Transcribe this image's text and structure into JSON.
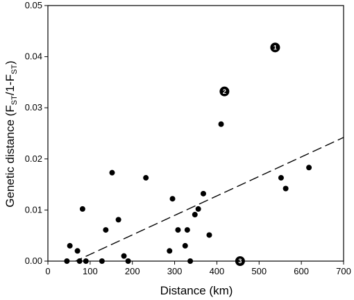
{
  "chart_data": {
    "type": "scatter",
    "xlabel": "Distance (km)",
    "ylabel": {
      "prefix": "Genetic distance (F",
      "sub1": "ST",
      "middle": "/1-F",
      "sub2": "ST",
      "suffix": ")"
    },
    "xlim": [
      0,
      700
    ],
    "ylim": [
      0,
      0.05
    ],
    "x_ticks": [
      "0",
      "100",
      "200",
      "300",
      "400",
      "500",
      "600",
      "700"
    ],
    "y_ticks": [
      "0.00",
      "0.01",
      "0.02",
      "0.03",
      "0.04",
      "0.05"
    ],
    "grid": false,
    "points": [
      {
        "x": 45,
        "y": 0.0
      },
      {
        "x": 52,
        "y": 0.003
      },
      {
        "x": 70,
        "y": 0.002
      },
      {
        "x": 75,
        "y": 0.0
      },
      {
        "x": 82,
        "y": 0.0102
      },
      {
        "x": 90,
        "y": 0.0
      },
      {
        "x": 128,
        "y": 0.0
      },
      {
        "x": 137,
        "y": 0.0061
      },
      {
        "x": 152,
        "y": 0.0173
      },
      {
        "x": 167,
        "y": 0.0081
      },
      {
        "x": 180,
        "y": 0.001
      },
      {
        "x": 190,
        "y": 0.0
      },
      {
        "x": 232,
        "y": 0.0163
      },
      {
        "x": 288,
        "y": 0.002
      },
      {
        "x": 295,
        "y": 0.0122
      },
      {
        "x": 308,
        "y": 0.0061
      },
      {
        "x": 325,
        "y": 0.003
      },
      {
        "x": 330,
        "y": 0.0061
      },
      {
        "x": 337,
        "y": 0.0
      },
      {
        "x": 348,
        "y": 0.0091
      },
      {
        "x": 356,
        "y": 0.0102
      },
      {
        "x": 368,
        "y": 0.0132
      },
      {
        "x": 382,
        "y": 0.0051
      },
      {
        "x": 410,
        "y": 0.0268
      },
      {
        "x": 552,
        "y": 0.0163
      },
      {
        "x": 563,
        "y": 0.0142
      },
      {
        "x": 618,
        "y": 0.0183
      }
    ],
    "labeled_points": [
      {
        "x": 538,
        "y": 0.0418,
        "label": "1"
      },
      {
        "x": 418,
        "y": 0.0332,
        "label": "2"
      },
      {
        "x": 455,
        "y": 0.0,
        "label": "3"
      }
    ],
    "trendline": {
      "style": "dashed",
      "x": [
        0,
        700
      ],
      "y": [
        -0.0025,
        0.0242
      ]
    }
  }
}
